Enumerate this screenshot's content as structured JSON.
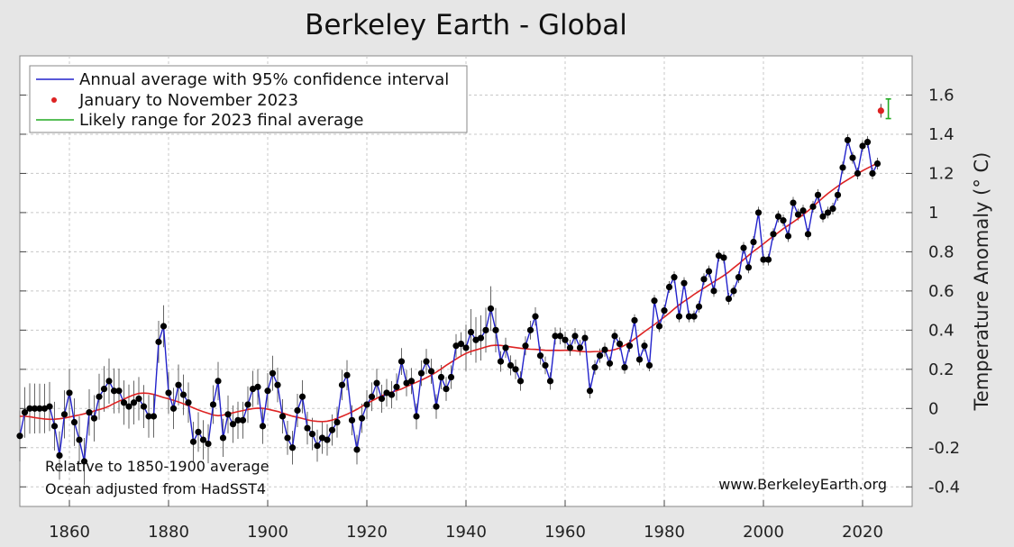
{
  "chart_data": {
    "type": "line",
    "title": "Berkeley Earth - Global",
    "ylabel": "Temperature Anomaly (° C)",
    "xlabel": "",
    "xlim": [
      1850,
      2030
    ],
    "ylim": [
      -0.5,
      1.8
    ],
    "x_ticks": [
      1860,
      1880,
      1900,
      1920,
      1940,
      1960,
      1980,
      2000,
      2020
    ],
    "y_ticks": [
      -0.4,
      -0.2,
      0,
      0.2,
      0.4,
      0.6,
      0.8,
      1,
      1.2,
      1.4,
      1.6
    ],
    "y_tick_labels": [
      "-0.4",
      "-0.2",
      "0",
      "0.2",
      "0.4",
      "0.6",
      "0.8",
      "1",
      "1.2",
      "1.4",
      "1.6"
    ],
    "grid": true,
    "legend_position": "top-left",
    "legend": [
      {
        "label": "Annual average with 95% confidence interval",
        "color": "#2222cc",
        "marker": "line"
      },
      {
        "label": "January to November 2023",
        "color": "#dd2222",
        "marker": "dot"
      },
      {
        "label": "Likely range for 2023 final average",
        "color": "#22aa22",
        "marker": "line"
      }
    ],
    "annotations": {
      "note_line1": "Relative to 1850-1900 average",
      "note_line2": "Ocean adjusted from HadSST4",
      "website": "www.BerkeleyEarth.org"
    },
    "series": [
      {
        "name": "Annual average with 95% confidence interval",
        "color": "#2222cc",
        "x_start": 1850,
        "values": [
          -0.14,
          -0.02,
          0.0,
          0.0,
          0.0,
          0.0,
          0.01,
          -0.09,
          -0.24,
          -0.03,
          0.08,
          -0.07,
          -0.16,
          -0.27,
          -0.02,
          -0.05,
          0.06,
          0.1,
          0.14,
          0.09,
          0.09,
          0.03,
          0.01,
          0.03,
          0.05,
          0.01,
          -0.04,
          -0.04,
          0.34,
          0.42,
          0.08,
          0.0,
          0.12,
          0.07,
          0.03,
          -0.17,
          -0.12,
          -0.16,
          -0.18,
          0.02,
          0.14,
          -0.15,
          -0.03,
          -0.08,
          -0.06,
          -0.06,
          0.02,
          0.1,
          0.11,
          -0.09,
          0.09,
          0.18,
          0.12,
          -0.04,
          -0.15,
          -0.2,
          -0.01,
          0.06,
          -0.1,
          -0.13,
          -0.19,
          -0.15,
          -0.16,
          -0.11,
          -0.07,
          0.12,
          0.17,
          -0.06,
          -0.21,
          -0.05,
          0.02,
          0.06,
          0.13,
          0.05,
          0.08,
          0.07,
          0.11,
          0.24,
          0.13,
          0.14,
          -0.04,
          0.18,
          0.24,
          0.19,
          0.01,
          0.16,
          0.1,
          0.16,
          0.32,
          0.33,
          0.31,
          0.39,
          0.35,
          0.36,
          0.4,
          0.51,
          0.4,
          0.24,
          0.31,
          0.22,
          0.2,
          0.14,
          0.32,
          0.4,
          0.47,
          0.27,
          0.22,
          0.14,
          0.37,
          0.37,
          0.35,
          0.31,
          0.37,
          0.31,
          0.36,
          0.09,
          0.21,
          0.27,
          0.3,
          0.23,
          0.37,
          0.33,
          0.21,
          0.32,
          0.45,
          0.25,
          0.32,
          0.22,
          0.55,
          0.42,
          0.5,
          0.62,
          0.67,
          0.47,
          0.64,
          0.47,
          0.47,
          0.52,
          0.66,
          0.7,
          0.6,
          0.78,
          0.77,
          0.56,
          0.6,
          0.67,
          0.82,
          0.72,
          0.85,
          1.0,
          0.76,
          0.76,
          0.89,
          0.98,
          0.96,
          0.88,
          1.05,
          0.99,
          1.01,
          0.89,
          1.03,
          1.09,
          0.98,
          1.0,
          1.02,
          1.09,
          1.23,
          1.37,
          1.28,
          1.2,
          1.34,
          1.36,
          1.2,
          1.25
        ]
      },
      {
        "name": "January to November 2023",
        "color": "#dd2222",
        "x": [
          2023.7
        ],
        "values": [
          1.52
        ]
      },
      {
        "name": "Likely range for 2023 final average",
        "color": "#22aa22",
        "x": [
          2025.2
        ],
        "range": [
          1.48,
          1.58
        ]
      }
    ]
  }
}
